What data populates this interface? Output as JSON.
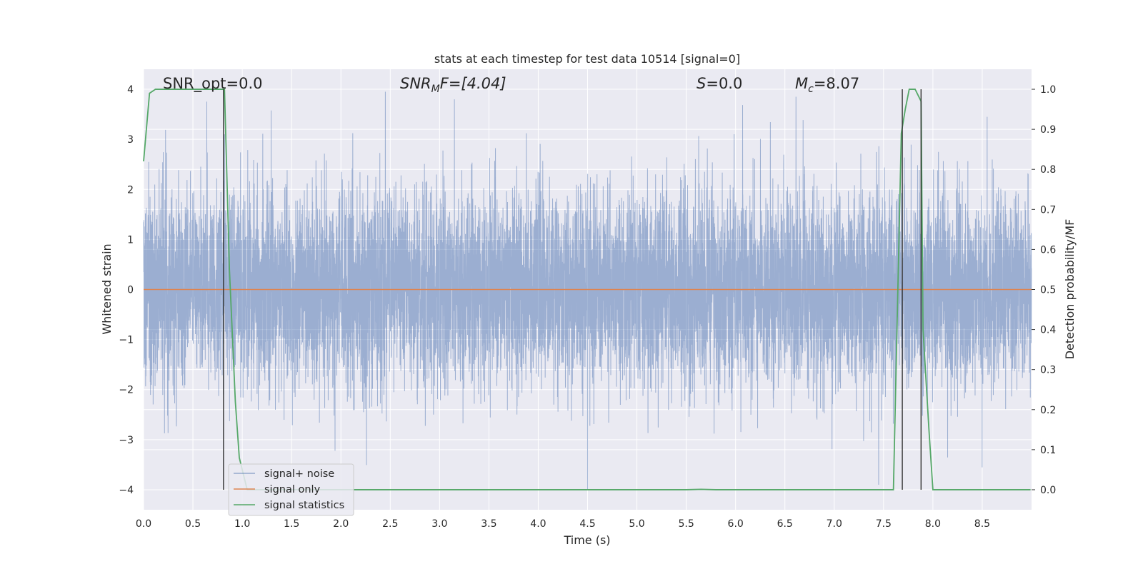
{
  "chart_data": {
    "type": "line",
    "title": "stats at each timestep for test data 10514 [signal=0]",
    "xlabel": "Time (s)",
    "ylabel": "Whitened strain",
    "ylabel_right": "Detection probability/MF",
    "xlim": [
      0,
      9.0
    ],
    "ylim": [
      -4.4,
      4.4
    ],
    "ylim_right": [
      -0.05,
      1.05
    ],
    "x_ticks": [
      0.0,
      0.5,
      1.0,
      1.5,
      2.0,
      2.5,
      3.0,
      3.5,
      4.0,
      4.5,
      5.0,
      5.5,
      6.0,
      6.5,
      7.0,
      7.5,
      8.0,
      8.5
    ],
    "x_tick_labels": [
      "0.0",
      "0.5",
      "1.0",
      "1.5",
      "2.0",
      "2.5",
      "3.0",
      "3.5",
      "4.0",
      "4.5",
      "5.0",
      "5.5",
      "6.0",
      "6.5",
      "7.0",
      "7.5",
      "8.0",
      "8.5"
    ],
    "y_ticks": [
      4,
      3,
      2,
      1,
      0,
      -1,
      -2,
      -3,
      -4
    ],
    "y_tick_labels": [
      "4",
      "3",
      "2",
      "1",
      "0",
      "−1",
      "−2",
      "−3",
      "−4"
    ],
    "y_right_ticks": [
      1.0,
      0.9,
      0.8,
      0.7,
      0.6,
      0.5,
      0.4,
      0.3,
      0.2,
      0.1,
      0.0
    ],
    "y_right_tick_labels": [
      "1.0",
      "0.9",
      "0.8",
      "0.7",
      "0.6",
      "0.5",
      "0.4",
      "0.3",
      "0.2",
      "0.1",
      "0.0"
    ],
    "grid": true,
    "legend_position": "lower-left",
    "colors": {
      "signal_noise": "#4c72b0",
      "signal_only": "#dd8452",
      "signal_statistics": "#55a868",
      "markers": "#333333",
      "plot_bg": "#eaeaf2",
      "grid": "#ffffff"
    },
    "annotations": {
      "snr_opt": "SNR_opt=0.0",
      "snr_mf_base": "SNR",
      "snr_mf_sub": "M",
      "snr_mf_rest": "F=[4.04]",
      "s_value_var": "S",
      "s_value_rest": "=0.0",
      "mc_var": "M",
      "mc_sub": "c",
      "mc_rest": "=8.07"
    },
    "series": [
      {
        "name": "signal+ noise",
        "axis": "left",
        "style": "noise",
        "duration": 9.0,
        "sample_rate": 1024,
        "std": 0.95,
        "note_peaks": [
          [
            0.82,
            3.1
          ],
          [
            2.45,
            3.95
          ],
          [
            3.15,
            3.8
          ],
          [
            4.5,
            -4.0
          ],
          [
            7.45,
            -3.9
          ],
          [
            8.55,
            3.45
          ]
        ]
      },
      {
        "name": "signal only",
        "axis": "left",
        "style": "line",
        "x": [
          0.0,
          9.0
        ],
        "y": [
          0.0,
          0.0
        ]
      },
      {
        "name": "signal statistics",
        "axis": "right",
        "style": "line",
        "x": [
          0.0,
          0.06,
          0.12,
          0.2,
          0.3,
          0.4,
          0.5,
          0.6,
          0.7,
          0.8,
          0.82,
          0.87,
          0.93,
          0.97,
          1.05,
          1.5,
          2.0,
          2.5,
          3.0,
          3.5,
          4.0,
          4.5,
          5.0,
          5.5,
          5.65,
          5.8,
          6.0,
          6.5,
          7.0,
          7.5,
          7.6,
          7.68,
          7.72,
          7.76,
          7.82,
          7.88,
          7.9,
          7.96,
          8.0,
          8.5,
          8.99
        ],
        "y": [
          0.82,
          0.99,
          1.0,
          1.0,
          1.0,
          1.0,
          1.0,
          1.0,
          1.0,
          1.0,
          1.0,
          0.55,
          0.22,
          0.08,
          0.0,
          0.0,
          0.0,
          0.0,
          0.0,
          0.0,
          0.0,
          0.0,
          0.0,
          0.0,
          0.001,
          0.0,
          0.0,
          0.0,
          0.0,
          0.0,
          0.0,
          0.89,
          0.95,
          1.0,
          1.0,
          0.97,
          0.4,
          0.15,
          0.0,
          0.0,
          0.0
        ]
      }
    ],
    "vertical_markers": [
      {
        "x": 0.81,
        "y_from": -4.0,
        "y_to": 4.0
      },
      {
        "x": 7.69,
        "y_from": -4.0,
        "y_to": 4.0
      },
      {
        "x": 7.88,
        "y_from": -4.0,
        "y_to": 4.0
      }
    ]
  }
}
